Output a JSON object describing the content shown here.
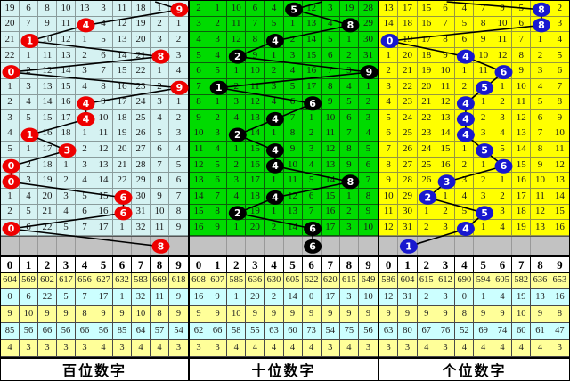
{
  "chart_data": {
    "type": "table",
    "title": "",
    "digit_columns": [
      "0",
      "1",
      "2",
      "3",
      "4",
      "5",
      "6",
      "7",
      "8",
      "9"
    ],
    "stat_row_colors": [
      "#FFFF99",
      "#CCFFFF",
      "#FFFF99",
      "#CCFFFF",
      "#FFFF99"
    ],
    "gray_row_color": "#C2C2C2",
    "line_color": "#000000",
    "panels": [
      {
        "id": "hundreds",
        "label": "百位数字",
        "bg": "#D5F2F2",
        "grid": "#8a9c9c",
        "circle_color": "#EE0000",
        "entry_col": 8.2,
        "rows": [
          [
            19,
            6,
            8,
            10,
            13,
            3,
            11,
            18,
            1,
            9
          ],
          [
            20,
            7,
            9,
            11,
            4,
            4,
            12,
            19,
            2,
            1
          ],
          [
            21,
            1,
            10,
            12,
            1,
            5,
            13,
            20,
            3,
            2
          ],
          [
            22,
            1,
            11,
            13,
            2,
            6,
            14,
            21,
            8,
            3
          ],
          [
            0,
            2,
            12,
            14,
            3,
            7,
            15,
            22,
            1,
            4
          ],
          [
            1,
            3,
            13,
            15,
            4,
            8,
            16,
            23,
            2,
            9
          ],
          [
            2,
            4,
            14,
            16,
            4,
            9,
            17,
            24,
            3,
            1
          ],
          [
            3,
            5,
            15,
            17,
            4,
            10,
            18,
            25,
            4,
            2
          ],
          [
            4,
            1,
            16,
            18,
            1,
            11,
            19,
            26,
            5,
            3
          ],
          [
            5,
            1,
            17,
            3,
            2,
            12,
            20,
            27,
            6,
            4
          ],
          [
            0,
            2,
            18,
            1,
            3,
            13,
            21,
            28,
            7,
            5
          ],
          [
            0,
            3,
            19,
            2,
            4,
            14,
            22,
            29,
            8,
            6
          ],
          [
            1,
            4,
            20,
            3,
            5,
            15,
            6,
            30,
            9,
            7
          ],
          [
            2,
            5,
            21,
            4,
            6,
            16,
            6,
            31,
            10,
            8
          ],
          [
            0,
            6,
            22,
            5,
            7,
            17,
            1,
            32,
            11,
            9
          ]
        ],
        "hits": [
          9,
          4,
          1,
          8,
          0,
          9,
          4,
          4,
          1,
          3,
          0,
          0,
          6,
          6,
          0
        ],
        "gray_hit": 8,
        "stats": [
          [
            604,
            569,
            602,
            617,
            656,
            627,
            632,
            583,
            669,
            618
          ],
          [
            0,
            6,
            22,
            5,
            7,
            17,
            1,
            32,
            11,
            9
          ],
          [
            9,
            10,
            9,
            9,
            8,
            9,
            9,
            10,
            8,
            9
          ],
          [
            85,
            56,
            66,
            56,
            66,
            56,
            85,
            64,
            57,
            54
          ],
          [
            4,
            3,
            3,
            3,
            3,
            4,
            3,
            4,
            4,
            3
          ]
        ]
      },
      {
        "id": "tens",
        "label": "十位数字",
        "bg": "#00DB00",
        "grid": "#0b5e0b",
        "circle_color": "#000000",
        "entry_col": 7.0,
        "rows": [
          [
            2,
            1,
            10,
            6,
            4,
            5,
            12,
            3,
            19,
            28
          ],
          [
            3,
            2,
            11,
            7,
            5,
            1,
            13,
            4,
            8,
            29
          ],
          [
            4,
            3,
            12,
            8,
            4,
            2,
            14,
            5,
            1,
            30
          ],
          [
            5,
            4,
            2,
            9,
            1,
            3,
            15,
            6,
            2,
            31
          ],
          [
            6,
            5,
            1,
            10,
            2,
            4,
            16,
            7,
            3,
            9
          ],
          [
            7,
            1,
            2,
            11,
            3,
            5,
            17,
            8,
            4,
            1
          ],
          [
            8,
            1,
            3,
            12,
            4,
            6,
            6,
            9,
            5,
            2
          ],
          [
            9,
            2,
            4,
            13,
            4,
            7,
            1,
            10,
            6,
            3
          ],
          [
            10,
            3,
            2,
            14,
            1,
            8,
            2,
            11,
            7,
            4
          ],
          [
            11,
            4,
            1,
            15,
            4,
            9,
            3,
            12,
            8,
            5
          ],
          [
            12,
            5,
            2,
            16,
            4,
            10,
            4,
            13,
            9,
            6
          ],
          [
            13,
            6,
            3,
            17,
            1,
            11,
            5,
            14,
            8,
            7
          ],
          [
            14,
            7,
            4,
            18,
            4,
            12,
            6,
            15,
            1,
            8
          ],
          [
            15,
            8,
            2,
            19,
            1,
            13,
            7,
            16,
            2,
            9
          ],
          [
            16,
            9,
            1,
            20,
            2,
            14,
            6,
            17,
            3,
            10
          ]
        ],
        "hits": [
          5,
          8,
          4,
          2,
          9,
          1,
          6,
          4,
          2,
          4,
          4,
          8,
          4,
          2,
          6
        ],
        "gray_hit": 6,
        "stats": [
          [
            608,
            607,
            585,
            636,
            630,
            605,
            622,
            620,
            615,
            649
          ],
          [
            16,
            9,
            1,
            20,
            2,
            14,
            0,
            17,
            3,
            10
          ],
          [
            9,
            9,
            10,
            9,
            9,
            9,
            9,
            9,
            9,
            9
          ],
          [
            62,
            66,
            58,
            55,
            63,
            60,
            73,
            54,
            75,
            56
          ],
          [
            3,
            3,
            4,
            4,
            4,
            4,
            4,
            3,
            4,
            3
          ]
        ]
      },
      {
        "id": "units",
        "label": "个位数字",
        "bg": "#FFFF00",
        "grid": "#97973f",
        "circle_color": "#1818CF",
        "entry_col": 3.5,
        "rows": [
          [
            13,
            17,
            15,
            6,
            4,
            7,
            9,
            5,
            8,
            2
          ],
          [
            14,
            18,
            16,
            7,
            5,
            8,
            10,
            6,
            8,
            3
          ],
          [
            0,
            19,
            17,
            8,
            6,
            9,
            11,
            7,
            1,
            4
          ],
          [
            1,
            20,
            18,
            9,
            4,
            10,
            12,
            8,
            2,
            5
          ],
          [
            2,
            21,
            19,
            10,
            1,
            11,
            6,
            9,
            3,
            6
          ],
          [
            3,
            22,
            20,
            11,
            2,
            5,
            1,
            10,
            4,
            7
          ],
          [
            4,
            23,
            21,
            12,
            4,
            1,
            2,
            11,
            5,
            8
          ],
          [
            5,
            24,
            22,
            13,
            4,
            2,
            3,
            12,
            6,
            9
          ],
          [
            6,
            25,
            23,
            14,
            4,
            3,
            4,
            13,
            7,
            10
          ],
          [
            7,
            26,
            24,
            15,
            1,
            5,
            5,
            14,
            8,
            11
          ],
          [
            8,
            27,
            25,
            16,
            2,
            1,
            6,
            15,
            9,
            12
          ],
          [
            9,
            28,
            26,
            3,
            3,
            2,
            1,
            16,
            10,
            13
          ],
          [
            10,
            29,
            2,
            1,
            4,
            3,
            2,
            17,
            11,
            14
          ],
          [
            11,
            30,
            1,
            2,
            5,
            5,
            3,
            18,
            12,
            15
          ],
          [
            12,
            31,
            2,
            3,
            4,
            1,
            4,
            19,
            13,
            16
          ]
        ],
        "hits": [
          8,
          8,
          0,
          4,
          6,
          5,
          4,
          4,
          4,
          5,
          6,
          3,
          2,
          5,
          4
        ],
        "gray_hit": 1,
        "stats": [
          [
            586,
            604,
            615,
            612,
            690,
            594,
            605,
            582,
            636,
            653
          ],
          [
            12,
            31,
            2,
            3,
            0,
            1,
            4,
            19,
            13,
            16
          ],
          [
            9,
            9,
            9,
            9,
            8,
            9,
            9,
            10,
            9,
            8
          ],
          [
            63,
            80,
            67,
            76,
            52,
            69,
            74,
            60,
            61,
            47
          ],
          [
            3,
            3,
            4,
            3,
            4,
            4,
            4,
            4,
            4,
            3
          ]
        ]
      }
    ]
  }
}
